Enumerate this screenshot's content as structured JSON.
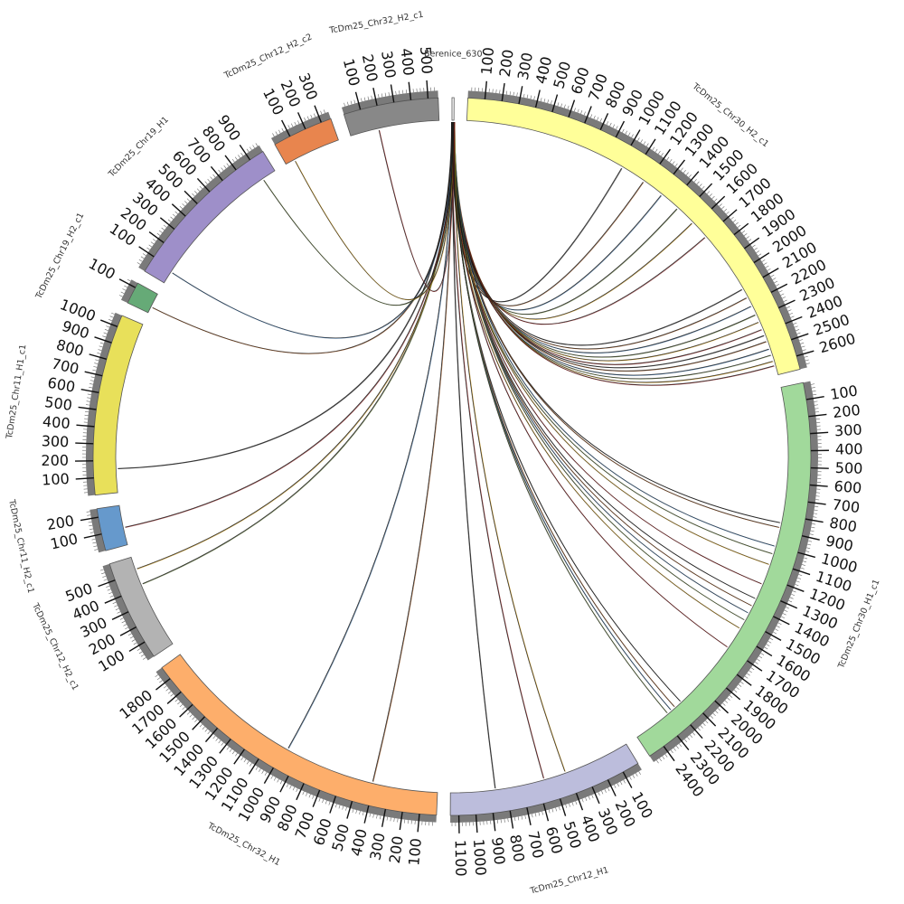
{
  "chart_data": {
    "type": "chord",
    "title": "",
    "segments": [
      {
        "name": "Berenice_630",
        "length": 12,
        "color": "#ffffff",
        "ticks": []
      },
      {
        "name": "TcDm25_Chr30_H2_c1",
        "length": 2680,
        "color": "#ffff99",
        "ticks": [
          100,
          200,
          300,
          400,
          500,
          600,
          700,
          800,
          900,
          1000,
          1100,
          1200,
          1300,
          1400,
          1500,
          1600,
          1700,
          1800,
          1900,
          2000,
          2100,
          2200,
          2300,
          2400,
          2500,
          2600
        ]
      },
      {
        "name": "TcDm25_Chr30_H1_c1",
        "length": 2500,
        "color": "#a1d99b",
        "ticks": [
          100,
          200,
          300,
          400,
          500,
          600,
          700,
          800,
          900,
          1000,
          1100,
          1200,
          1300,
          1400,
          1500,
          1600,
          1700,
          1800,
          1900,
          2000,
          2100,
          2200,
          2300,
          2400
        ]
      },
      {
        "name": "TcDm25_Chr12_H1",
        "length": 1150,
        "color": "#bcbddc",
        "ticks": [
          100,
          200,
          300,
          400,
          500,
          600,
          700,
          800,
          900,
          1000,
          1100
        ]
      },
      {
        "name": "TcDm25_Chr32_H1",
        "length": 1880,
        "color": "#fdae6b",
        "ticks": [
          100,
          200,
          300,
          400,
          500,
          600,
          700,
          800,
          900,
          1000,
          1100,
          1200,
          1300,
          1400,
          1500,
          1600,
          1700,
          1800
        ]
      },
      {
        "name": "TcDm25_Chr12_H2_c1",
        "length": 600,
        "color": "#b3b3b3",
        "ticks": [
          100,
          200,
          300,
          400,
          500
        ]
      },
      {
        "name": "TcDm25_Chr11_H2_c1",
        "length": 250,
        "color": "#6699cc",
        "ticks": [
          100,
          200
        ]
      },
      {
        "name": "TcDm25_Chr11_H1_c1",
        "length": 1070,
        "color": "#e8e05a",
        "ticks": [
          100,
          200,
          300,
          400,
          500,
          600,
          700,
          800,
          900,
          1000
        ]
      },
      {
        "name": "TcDm25_Chr19_H2_c1",
        "length": 130,
        "color": "#66aa77",
        "ticks": [
          100
        ]
      },
      {
        "name": "TcDm25_Chr19_H1",
        "length": 990,
        "color": "#9e8fc9",
        "ticks": [
          100,
          200,
          300,
          400,
          500,
          600,
          700,
          800,
          900
        ]
      },
      {
        "name": "TcDm25_Chr12_H2_c2",
        "length": 360,
        "color": "#e8854e",
        "ticks": [
          100,
          200,
          300
        ]
      },
      {
        "name": "TcDm25_Chr32_H2_c1",
        "length": 560,
        "color": "#888888",
        "ticks": [
          100,
          200,
          300,
          400,
          500
        ]
      }
    ],
    "links": [
      {
        "target": "TcDm25_Chr30_H2_c1",
        "position": 1020
      },
      {
        "target": "TcDm25_Chr30_H2_c1",
        "position": 1180
      },
      {
        "target": "TcDm25_Chr30_H2_c1",
        "position": 1320
      },
      {
        "target": "TcDm25_Chr30_H2_c1",
        "position": 1450
      },
      {
        "target": "TcDm25_Chr30_H2_c1",
        "position": 1580
      },
      {
        "target": "TcDm25_Chr30_H2_c1",
        "position": 1700
      },
      {
        "target": "TcDm25_Chr30_H2_c1",
        "position": 2100
      },
      {
        "target": "TcDm25_Chr30_H2_c1",
        "position": 2160
      },
      {
        "target": "TcDm25_Chr30_H2_c1",
        "position": 2220
      },
      {
        "target": "TcDm25_Chr30_H2_c1",
        "position": 2280
      },
      {
        "target": "TcDm25_Chr30_H2_c1",
        "position": 2330
      },
      {
        "target": "TcDm25_Chr30_H2_c1",
        "position": 2380
      },
      {
        "target": "TcDm25_Chr30_H2_c1",
        "position": 2420
      },
      {
        "target": "TcDm25_Chr30_H2_c1",
        "position": 2460
      },
      {
        "target": "TcDm25_Chr30_H2_c1",
        "position": 2510
      },
      {
        "target": "TcDm25_Chr30_H2_c1",
        "position": 2550
      },
      {
        "target": "TcDm25_Chr30_H2_c1",
        "position": 2590
      },
      {
        "target": "TcDm25_Chr30_H2_c1",
        "position": 2620
      },
      {
        "target": "TcDm25_Chr30_H1_c1",
        "position": 850
      },
      {
        "target": "TcDm25_Chr30_H1_c1",
        "position": 880
      },
      {
        "target": "TcDm25_Chr30_H1_c1",
        "position": 1000
      },
      {
        "target": "TcDm25_Chr30_H1_c1",
        "position": 1050
      },
      {
        "target": "TcDm25_Chr30_H1_c1",
        "position": 1120
      },
      {
        "target": "TcDm25_Chr30_H1_c1",
        "position": 1250
      },
      {
        "target": "TcDm25_Chr30_H1_c1",
        "position": 1350
      },
      {
        "target": "TcDm25_Chr30_H1_c1",
        "position": 1400
      },
      {
        "target": "TcDm25_Chr30_H1_c1",
        "position": 1450
      },
      {
        "target": "TcDm25_Chr30_H1_c1",
        "position": 1500
      },
      {
        "target": "TcDm25_Chr30_H1_c1",
        "position": 1560
      },
      {
        "target": "TcDm25_Chr30_H1_c1",
        "position": 1700
      },
      {
        "target": "TcDm25_Chr30_H1_c1",
        "position": 2150
      },
      {
        "target": "TcDm25_Chr30_H1_c1",
        "position": 2200
      },
      {
        "target": "TcDm25_Chr30_H1_c1",
        "position": 2230
      },
      {
        "target": "TcDm25_Chr30_H1_c1",
        "position": 2260
      },
      {
        "target": "TcDm25_Chr12_H1",
        "position": 420
      },
      {
        "target": "TcDm25_Chr12_H1",
        "position": 560
      },
      {
        "target": "TcDm25_Chr12_H1",
        "position": 870
      },
      {
        "target": "TcDm25_Chr32_H1",
        "position": 410
      },
      {
        "target": "TcDm25_Chr32_H1",
        "position": 980
      },
      {
        "target": "TcDm25_Chr12_H2_c1",
        "position": 420
      },
      {
        "target": "TcDm25_Chr12_H2_c1",
        "position": 520
      },
      {
        "target": "TcDm25_Chr11_H2_c1",
        "position": 110
      },
      {
        "target": "TcDm25_Chr11_H1_c1",
        "position": 150
      },
      {
        "target": "TcDm25_Chr19_H2_c1",
        "position": 40
      },
      {
        "target": "TcDm25_Chr19_H1",
        "position": 80
      },
      {
        "target": "TcDm25_Chr19_H1",
        "position": 900
      },
      {
        "target": "TcDm25_Chr12_H2_c2",
        "position": 60
      },
      {
        "target": "TcDm25_Chr32_H2_c1",
        "position": 180
      }
    ],
    "link_colors": [
      "#222222",
      "#8b4513",
      "#2f5f8f",
      "#556b2f",
      "#b8860b",
      "#8b1a1a"
    ]
  }
}
